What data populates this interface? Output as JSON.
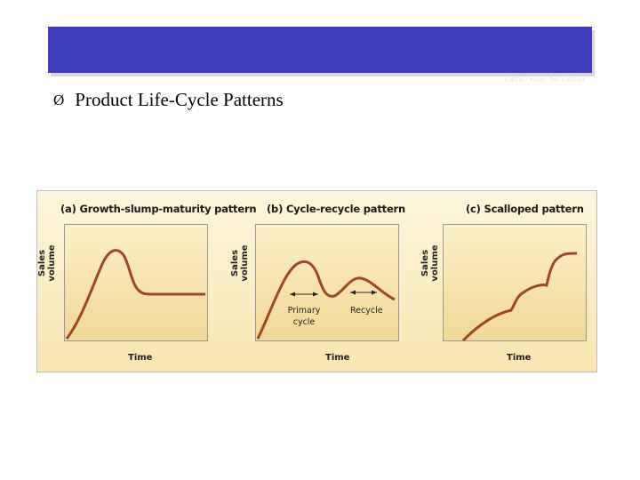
{
  "slide": {
    "title_bar_caption": "Lamb, Hair, McDaniel",
    "bullet_symbol": "Ø",
    "bullet_text": "Product Life-Cycle Patterns"
  },
  "figure": {
    "panels": [
      {
        "id": "a",
        "title": "(a) Growth-slump-maturity pattern",
        "y_label": "Sales volume",
        "x_label": "Time"
      },
      {
        "id": "b",
        "title": "(b) Cycle-recycle pattern",
        "y_label": "Sales volume",
        "x_label": "Time",
        "annotations": {
          "primary": "Primary",
          "primary2": "cycle",
          "recycle": "Recycle"
        }
      },
      {
        "id": "c",
        "title": "(c) Scalloped pattern",
        "y_label": "Sales volume",
        "x_label": "Time"
      }
    ],
    "curve_color": "#a0442c"
  }
}
